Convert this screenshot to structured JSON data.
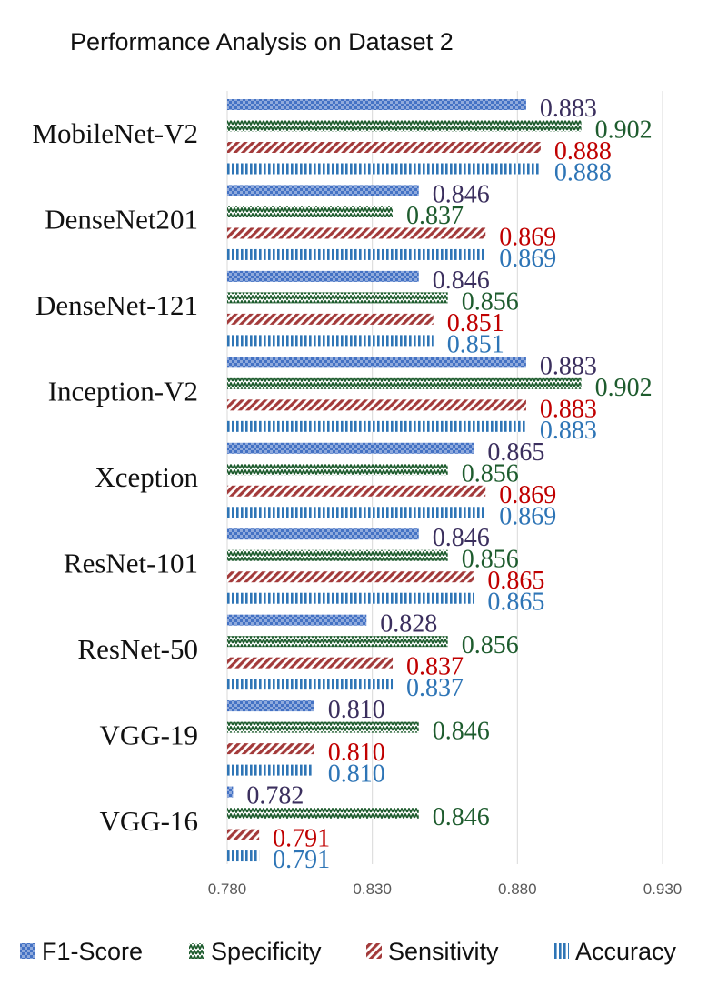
{
  "chart_data": {
    "type": "bar",
    "orientation": "horizontal",
    "title": "Performance Analysis on Dataset 2",
    "xlabel": "",
    "ylabel": "",
    "xlim": [
      0.78,
      0.93
    ],
    "x_ticks": [
      "0.780",
      "0.830",
      "0.880",
      "0.930"
    ],
    "grid": true,
    "legend_position": "bottom",
    "categories": [
      "MobileNet-V2",
      "DenseNet201",
      "DenseNet-121",
      "Inception-V2",
      "Xception",
      "ResNet-101",
      "ResNet-50",
      "VGG-19",
      "VGG-16"
    ],
    "series": [
      {
        "name": "F1-Score",
        "color": "#4472C4",
        "label_color": "#3B2F5E",
        "pattern": "checker",
        "values": [
          0.883,
          0.846,
          0.846,
          0.883,
          0.865,
          0.846,
          0.828,
          0.81,
          0.782
        ],
        "labels": [
          "0.883",
          "0.846",
          "0.846",
          "0.883",
          "0.865",
          "0.846",
          "0.828",
          "0.810",
          "0.782"
        ]
      },
      {
        "name": "Specificity",
        "color": "#1E5C2E",
        "label_color": "#1E5C2E",
        "pattern": "zigzag",
        "values": [
          0.902,
          0.837,
          0.856,
          0.902,
          0.856,
          0.856,
          0.856,
          0.846,
          0.846
        ],
        "labels": [
          "0.902",
          "0.837",
          "0.856",
          "0.902",
          "0.856",
          "0.856",
          "0.856",
          "0.846",
          "0.846"
        ]
      },
      {
        "name": "Sensitivity",
        "color": "#A33A3A",
        "label_color": "#C00000",
        "pattern": "diagonal",
        "values": [
          0.888,
          0.869,
          0.851,
          0.883,
          0.869,
          0.865,
          0.837,
          0.81,
          0.791
        ],
        "labels": [
          "0.888",
          "0.869",
          "0.851",
          "0.883",
          "0.869",
          "0.865",
          "0.837",
          "0.810",
          "0.791"
        ]
      },
      {
        "name": "Accuracy",
        "color": "#2E75B6",
        "label_color": "#2E75B6",
        "pattern": "vertical",
        "values": [
          0.888,
          0.869,
          0.851,
          0.883,
          0.869,
          0.865,
          0.837,
          0.81,
          0.791
        ],
        "labels": [
          "0.888",
          "0.869",
          "0.851",
          "0.883",
          "0.869",
          "0.865",
          "0.837",
          "0.810",
          "0.791"
        ]
      }
    ]
  }
}
